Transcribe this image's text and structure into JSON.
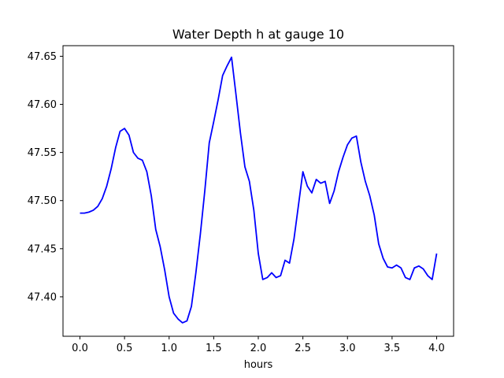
{
  "chart_data": {
    "type": "line",
    "title": "Water Depth h at gauge 10",
    "xlabel": "hours",
    "ylabel": "",
    "xlim": [
      -0.19,
      4.19
    ],
    "ylim": [
      47.359,
      47.661
    ],
    "xticks": [
      0.0,
      0.5,
      1.0,
      1.5,
      2.0,
      2.5,
      3.0,
      3.5,
      4.0
    ],
    "xtick_labels": [
      "0.0",
      "0.5",
      "1.0",
      "1.5",
      "2.0",
      "2.5",
      "3.0",
      "3.5",
      "4.0"
    ],
    "yticks": [
      47.4,
      47.45,
      47.5,
      47.55,
      47.6,
      47.65
    ],
    "ytick_labels": [
      "47.40",
      "47.45",
      "47.50",
      "47.55",
      "47.60",
      "47.65"
    ],
    "grid": false,
    "series": [
      {
        "color": "#0000ff",
        "x": [
          0.0,
          0.05,
          0.1,
          0.15,
          0.2,
          0.25,
          0.3,
          0.35,
          0.4,
          0.45,
          0.5,
          0.55,
          0.6,
          0.65,
          0.7,
          0.75,
          0.8,
          0.85,
          0.9,
          0.95,
          1.0,
          1.05,
          1.1,
          1.15,
          1.2,
          1.25,
          1.3,
          1.35,
          1.4,
          1.45,
          1.5,
          1.55,
          1.6,
          1.65,
          1.7,
          1.75,
          1.8,
          1.85,
          1.9,
          1.95,
          2.0,
          2.05,
          2.1,
          2.15,
          2.2,
          2.25,
          2.3,
          2.35,
          2.4,
          2.45,
          2.5,
          2.55,
          2.6,
          2.65,
          2.7,
          2.75,
          2.8,
          2.85,
          2.9,
          2.95,
          3.0,
          3.05,
          3.1,
          3.15,
          3.2,
          3.25,
          3.3,
          3.35,
          3.4,
          3.45,
          3.5,
          3.55,
          3.6,
          3.65,
          3.7,
          3.75,
          3.8,
          3.85,
          3.9,
          3.95,
          4.0
        ],
        "y": [
          47.487,
          47.487,
          47.488,
          47.49,
          47.494,
          47.502,
          47.515,
          47.533,
          47.555,
          47.572,
          47.575,
          47.568,
          47.55,
          47.544,
          47.542,
          47.53,
          47.505,
          47.47,
          47.452,
          47.428,
          47.4,
          47.383,
          47.377,
          47.373,
          47.375,
          47.39,
          47.425,
          47.465,
          47.51,
          47.56,
          47.582,
          47.605,
          47.63,
          47.64,
          47.649,
          47.61,
          47.57,
          47.535,
          47.52,
          47.49,
          47.445,
          47.418,
          47.42,
          47.425,
          47.42,
          47.422,
          47.438,
          47.435,
          47.46,
          47.495,
          47.53,
          47.515,
          47.508,
          47.522,
          47.518,
          47.52,
          47.497,
          47.51,
          47.53,
          47.545,
          47.558,
          47.565,
          47.567,
          47.54,
          47.52,
          47.505,
          47.485,
          47.455,
          47.44,
          47.431,
          47.43,
          47.433,
          47.43,
          47.42,
          47.418,
          47.43,
          47.432,
          47.429,
          47.422,
          47.418,
          47.445
        ]
      }
    ]
  }
}
